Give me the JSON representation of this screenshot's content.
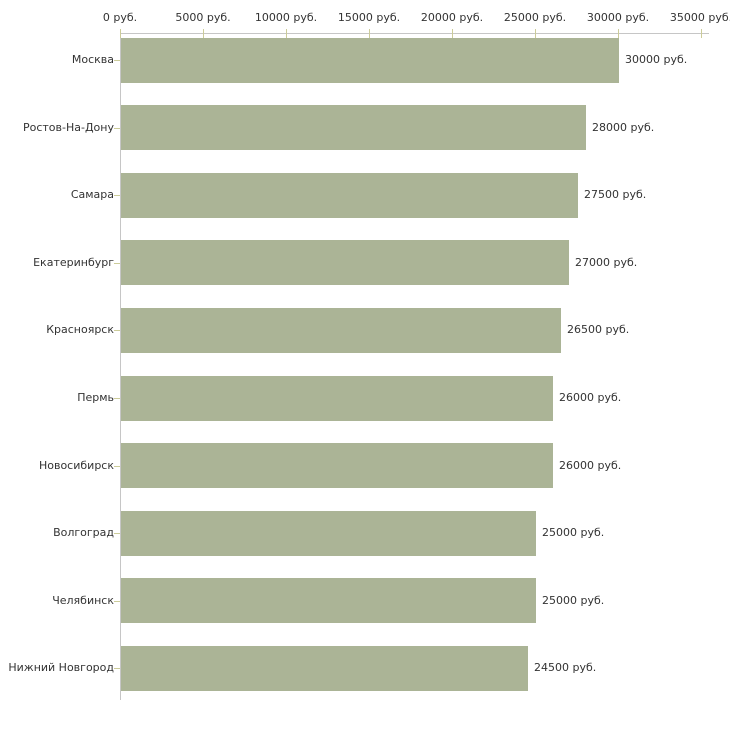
{
  "chart_data": {
    "type": "bar",
    "orientation": "horizontal",
    "title": "",
    "xlabel": "",
    "ylabel": "",
    "unit": "руб.",
    "categories": [
      "Москва",
      "Ростов-На-Дону",
      "Самара",
      "Екатеринбург",
      "Красноярск",
      "Пермь",
      "Новосибирск",
      "Волгоград",
      "Челябинск",
      "Нижний Новгород"
    ],
    "values": [
      30000,
      28000,
      27500,
      27000,
      26500,
      26000,
      26000,
      25000,
      25000,
      24500
    ],
    "value_labels": [
      "30000 руб.",
      "28000 руб.",
      "27500 руб.",
      "27000 руб.",
      "26500 руб.",
      "26000 руб.",
      "26000 руб.",
      "25000 руб.",
      "25000 руб.",
      "24500 руб."
    ],
    "x_ticks": [
      0,
      5000,
      10000,
      15000,
      20000,
      25000,
      30000,
      35000
    ],
    "x_tick_labels": [
      "0 руб.",
      "5000 руб.",
      "10000 руб.",
      "15000 руб.",
      "20000 руб.",
      "25000 руб.",
      "30000 руб.",
      "35000 руб."
    ],
    "xlim": [
      0,
      35000
    ],
    "grid": false,
    "legend": null,
    "colors": {
      "bar": "#abb496",
      "axis": "#c6c6c6",
      "tick_mark": "#cccc99",
      "text": "#333333",
      "background": "#ffffff"
    }
  }
}
